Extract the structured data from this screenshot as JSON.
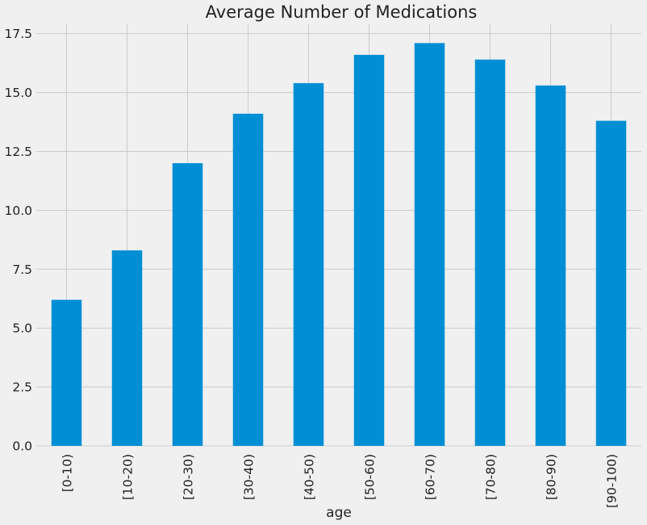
{
  "chart_data": {
    "type": "bar",
    "title": "Average Number of Medications",
    "xlabel": "age",
    "ylabel": "",
    "categories": [
      "[0-10)",
      "[10-20)",
      "[20-30)",
      "[30-40)",
      "[40-50)",
      "[50-60)",
      "[60-70)",
      "[70-80)",
      "[80-90)",
      "[90-100)"
    ],
    "values": [
      6.2,
      8.3,
      12.0,
      14.1,
      15.4,
      16.6,
      17.1,
      16.4,
      15.3,
      13.8
    ],
    "ylim": [
      0,
      17.9
    ],
    "yticks": [
      "0.0",
      "2.5",
      "5.0",
      "7.5",
      "10.0",
      "12.5",
      "15.0",
      "17.5"
    ],
    "grid": true,
    "bar_color": "#008fd5",
    "background_color": "#f0f0f0",
    "grid_color": "#cbcbcb"
  }
}
